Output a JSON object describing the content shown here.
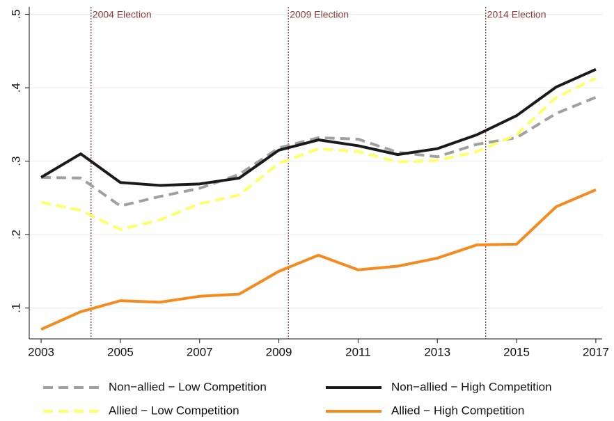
{
  "chart_data": {
    "type": "line",
    "x": [
      2003,
      2004,
      2005,
      2006,
      2007,
      2008,
      2009,
      2010,
      2011,
      2012,
      2013,
      2014,
      2015,
      2016,
      2017
    ],
    "xlim": [
      2002.7,
      2017.16
    ],
    "xticks": [
      2003,
      2005,
      2007,
      2009,
      2011,
      2013,
      2015,
      2017
    ],
    "ylim": [
      0.058,
      0.51
    ],
    "yticks": [
      {
        "value": 0.1,
        "label": ".1"
      },
      {
        "value": 0.2,
        "label": ".2"
      },
      {
        "value": 0.3,
        "label": ".3"
      },
      {
        "value": 0.4,
        "label": ".4"
      },
      {
        "value": 0.5,
        "label": ".5"
      }
    ],
    "grid": true,
    "legend": "bottom",
    "annotations": [
      {
        "text": "2004 Election",
        "x": 2004.26,
        "color": "#8b3a3a"
      },
      {
        "text": "2009 Election",
        "x": 2009.24,
        "color": "#8b3a3a"
      },
      {
        "text": "2014 Election",
        "x": 2014.22,
        "color": "#8b3a3a"
      }
    ],
    "series": [
      {
        "name": "Non−allied − Low Competition",
        "color": "#a0a0a0",
        "dashed": true,
        "values": [
          0.278,
          0.277,
          0.239,
          0.252,
          0.263,
          0.282,
          0.318,
          0.332,
          0.33,
          0.312,
          0.306,
          0.323,
          0.332,
          0.365,
          0.387
        ]
      },
      {
        "name": "Non−allied − High Competition",
        "color": "#1a1a1a",
        "dashed": false,
        "values": [
          0.278,
          0.31,
          0.271,
          0.267,
          0.269,
          0.277,
          0.315,
          0.329,
          0.321,
          0.309,
          0.317,
          0.336,
          0.362,
          0.401,
          0.425
        ]
      },
      {
        "name": "Allied − Low Competition",
        "color": "#ffff66",
        "dashed": true,
        "values": [
          0.244,
          0.233,
          0.207,
          0.22,
          0.242,
          0.254,
          0.297,
          0.317,
          0.313,
          0.299,
          0.301,
          0.313,
          0.336,
          0.387,
          0.413
        ]
      },
      {
        "name": "Allied − High Competition",
        "color": "#f58a1f",
        "dashed": false,
        "values": [
          0.071,
          0.095,
          0.11,
          0.108,
          0.116,
          0.119,
          0.15,
          0.172,
          0.152,
          0.157,
          0.168,
          0.186,
          0.187,
          0.238,
          0.261
        ]
      }
    ]
  }
}
